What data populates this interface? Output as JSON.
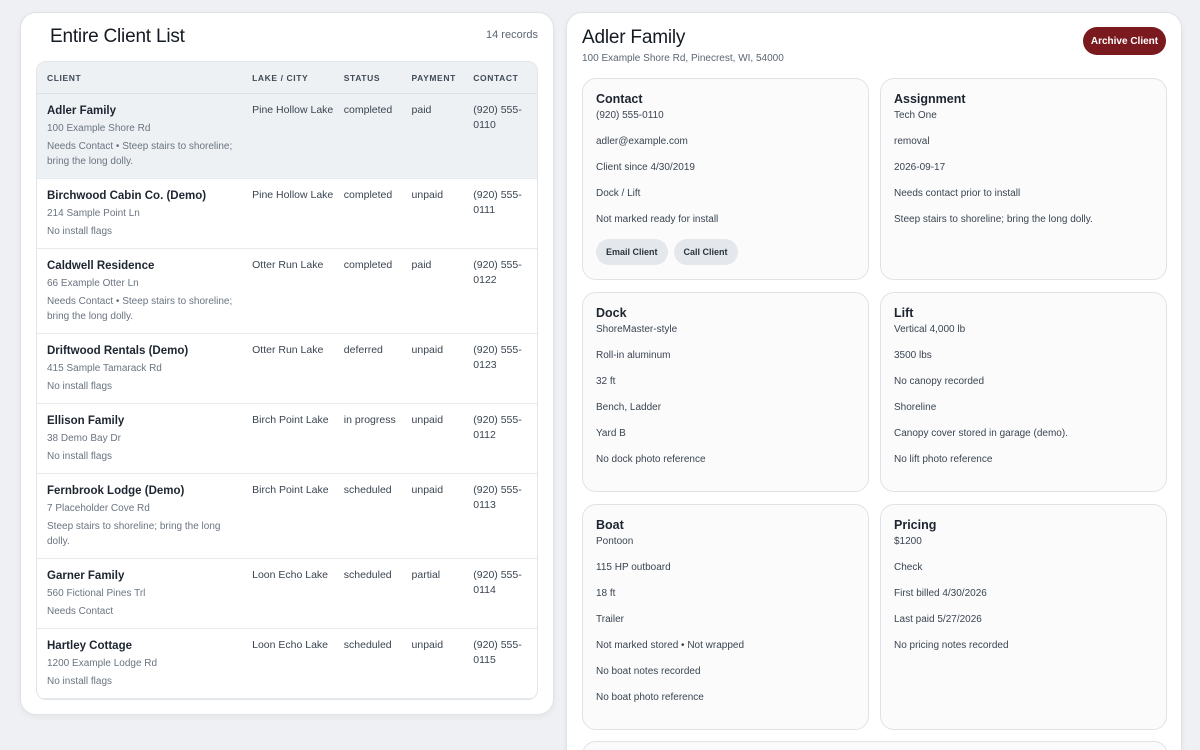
{
  "client_list": {
    "title": "Entire Client List",
    "record_count": "14 records",
    "columns": [
      "CLIENT",
      "LAKE / CITY",
      "STATUS",
      "PAYMENT",
      "CONTACT"
    ],
    "rows": [
      {
        "name": "Adler Family",
        "address": "100 Example Shore Rd",
        "flags": "Needs Contact • Steep stairs to shoreline; bring the long dolly.",
        "lake": "Pine Hollow Lake",
        "status": "completed",
        "payment": "paid",
        "contact": "(920) 555-0110",
        "selected": true
      },
      {
        "name": "Birchwood Cabin Co. (Demo)",
        "address": "214 Sample Point Ln",
        "flags": "No install flags",
        "lake": "Pine Hollow Lake",
        "status": "completed",
        "payment": "unpaid",
        "contact": "(920) 555-0111",
        "selected": false
      },
      {
        "name": "Caldwell Residence",
        "address": "66 Example Otter Ln",
        "flags": "Needs Contact • Steep stairs to shoreline; bring the long dolly.",
        "lake": "Otter Run Lake",
        "status": "completed",
        "payment": "paid",
        "contact": "(920) 555-0122",
        "selected": false
      },
      {
        "name": "Driftwood Rentals (Demo)",
        "address": "415 Sample Tamarack Rd",
        "flags": "No install flags",
        "lake": "Otter Run Lake",
        "status": "deferred",
        "payment": "unpaid",
        "contact": "(920) 555-0123",
        "selected": false
      },
      {
        "name": "Ellison Family",
        "address": "38 Demo Bay Dr",
        "flags": "No install flags",
        "lake": "Birch Point Lake",
        "status": "in progress",
        "payment": "unpaid",
        "contact": "(920) 555-0112",
        "selected": false
      },
      {
        "name": "Fernbrook Lodge (Demo)",
        "address": "7 Placeholder Cove Rd",
        "flags": "Steep stairs to shoreline; bring the long dolly.",
        "lake": "Birch Point Lake",
        "status": "scheduled",
        "payment": "unpaid",
        "contact": "(920) 555-0113",
        "selected": false
      },
      {
        "name": "Garner Family",
        "address": "560 Fictional Pines Trl",
        "flags": "Needs Contact",
        "lake": "Loon Echo Lake",
        "status": "scheduled",
        "payment": "partial",
        "contact": "(920) 555-0114",
        "selected": false
      },
      {
        "name": "Hartley Cottage",
        "address": "1200 Example Lodge Rd",
        "flags": "No install flags",
        "lake": "Loon Echo Lake",
        "status": "scheduled",
        "payment": "unpaid",
        "contact": "(920) 555-0115",
        "selected": false
      }
    ]
  },
  "detail": {
    "name": "Adler Family",
    "address": "100 Example Shore Rd, Pinecrest, WI, 54000",
    "archive_label": "Archive Client",
    "cards": [
      {
        "key": "contact",
        "title": "Contact",
        "lines": [
          "(920) 555-0110",
          "adler@example.com",
          "Client since 4/30/2019",
          "Dock / Lift",
          "Not marked ready for install"
        ],
        "buttons": [
          "Email Client",
          "Call Client"
        ]
      },
      {
        "key": "assignment",
        "title": "Assignment",
        "lines": [
          "Tech One",
          "removal",
          "2026-09-17",
          "Needs contact prior to install",
          "Steep stairs to shoreline; bring the long dolly."
        ],
        "buttons": []
      },
      {
        "key": "dock",
        "title": "Dock",
        "lines": [
          "ShoreMaster-style",
          "Roll-in aluminum",
          "32 ft",
          "Bench, Ladder",
          "Yard B",
          "No dock photo reference"
        ],
        "buttons": []
      },
      {
        "key": "lift",
        "title": "Lift",
        "lines": [
          "Vertical 4,000 lb",
          "3500 lbs",
          "No canopy recorded",
          "Shoreline",
          "Canopy cover stored in garage (demo).",
          "No lift photo reference"
        ],
        "buttons": []
      },
      {
        "key": "boat",
        "title": "Boat",
        "lines": [
          "Pontoon",
          "115 HP outboard",
          "18 ft",
          "Trailer",
          "Not marked stored • Not wrapped",
          "No boat notes recorded",
          "No boat photo reference"
        ],
        "buttons": []
      },
      {
        "key": "pricing",
        "title": "Pricing",
        "lines": [
          "$1200",
          "Check",
          "First billed 4/30/2026",
          "Last paid 5/27/2026",
          "No pricing notes recorded"
        ],
        "buttons": []
      }
    ]
  },
  "colors": {
    "accent": "#7a1a1e",
    "selected_row": "#eef1f4",
    "card_bg": "#fbfbfc"
  }
}
